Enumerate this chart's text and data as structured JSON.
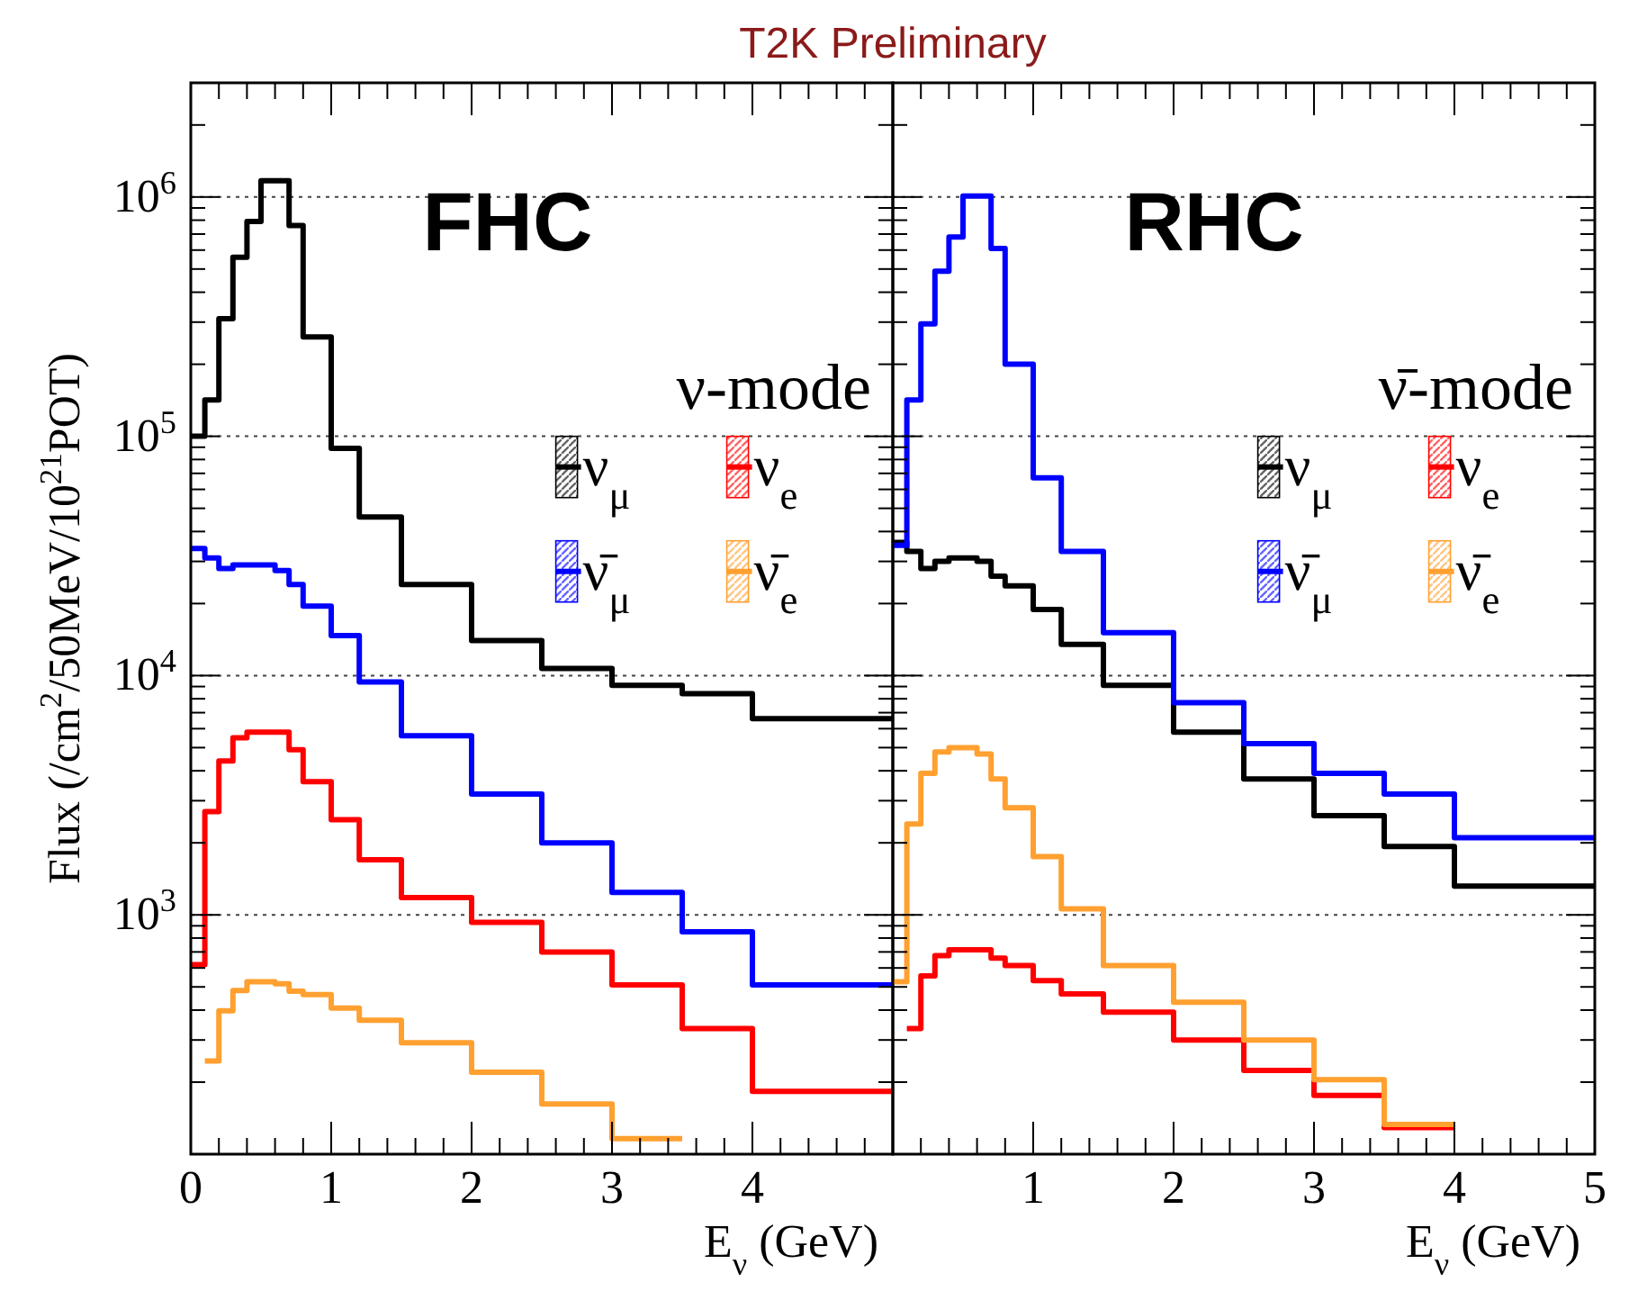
{
  "chart_data": [
    {
      "type": "histogram",
      "title": "FHC",
      "annotations": [
        "T2K Preliminary",
        "ν-mode"
      ],
      "xlabel": "E$_{ν}$ (GeV)",
      "ylabel": "Flux (/cm$^{2}$/50MeV/10$^{21}$POT)",
      "log": "y",
      "grid": "y",
      "legend": "right",
      "bins": [
        0,
        0.1,
        0.2,
        0.3,
        0.4,
        0.5,
        0.6,
        0.7,
        0.8,
        1.0,
        1.2,
        1.5,
        2.0,
        2.5,
        3.0,
        3.5,
        4.0,
        5.0
      ],
      "xlim": [
        0,
        5
      ],
      "ylim": [
        100,
        3000000
      ],
      "xticks": [
        0,
        {
          "value": 0.2,
          "label": null
        },
        {
          "value": 0.4,
          "label": null
        },
        {
          "value": 0.6,
          "label": null
        },
        {
          "value": 0.8,
          "label": null
        },
        1,
        {
          "value": 1.2,
          "label": null
        },
        {
          "value": 1.4,
          "label": null
        },
        {
          "value": 1.6,
          "label": null
        },
        {
          "value": 1.8,
          "label": null
        },
        2,
        {
          "value": 2.2,
          "label": null
        },
        {
          "value": 2.4,
          "label": null
        },
        {
          "value": 2.6,
          "label": null
        },
        {
          "value": 2.8,
          "label": null
        },
        3,
        {
          "value": 3.2,
          "label": null
        },
        {
          "value": 3.4,
          "label": null
        },
        {
          "value": 3.6,
          "label": null
        },
        {
          "value": 3.8,
          "label": null
        },
        4,
        {
          "value": 4.2,
          "label": null
        },
        {
          "value": 4.4,
          "label": null
        },
        {
          "value": 4.6,
          "label": null
        },
        {
          "value": 4.8,
          "label": null
        },
        {
          "value": 5,
          "label": null
        }
      ],
      "yticks": [
        {
          "value": 200,
          "label": null
        },
        {
          "value": 300,
          "label": null
        },
        {
          "value": 400,
          "label": null
        },
        {
          "value": 500,
          "label": null
        },
        {
          "value": 600,
          "label": null
        },
        {
          "value": 700,
          "label": null
        },
        {
          "value": 800,
          "label": null
        },
        {
          "value": 900,
          "label": null
        },
        {
          "value": 1000,
          "label": "10$^{3}$"
        },
        {
          "value": 2000,
          "label": null
        },
        {
          "value": 3000,
          "label": null
        },
        {
          "value": 4000,
          "label": null
        },
        {
          "value": 5000,
          "label": null
        },
        {
          "value": 6000,
          "label": null
        },
        {
          "value": 7000,
          "label": null
        },
        {
          "value": 8000,
          "label": null
        },
        {
          "value": 9000,
          "label": null
        },
        {
          "value": 10000,
          "label": "10$^{4}$"
        },
        {
          "value": 20000,
          "label": null
        },
        {
          "value": 30000,
          "label": null
        },
        {
          "value": 40000,
          "label": null
        },
        {
          "value": 50000,
          "label": null
        },
        {
          "value": 60000,
          "label": null
        },
        {
          "value": 70000,
          "label": null
        },
        {
          "value": 80000,
          "label": null
        },
        {
          "value": 90000,
          "label": null
        },
        {
          "value": 100000,
          "label": "10$^{5}$"
        },
        {
          "value": 200000,
          "label": null
        },
        {
          "value": 300000,
          "label": null
        },
        {
          "value": 400000,
          "label": null
        },
        {
          "value": 500000,
          "label": null
        },
        {
          "value": 600000,
          "label": null
        },
        {
          "value": 700000,
          "label": null
        },
        {
          "value": 800000,
          "label": null
        },
        {
          "value": 900000,
          "label": null
        },
        {
          "value": 1000000,
          "label": "10$^{6}$"
        },
        {
          "value": 2000000,
          "label": null
        }
      ],
      "series": [
        {
          "name": "ν$_{μ}$",
          "color": "#000000",
          "values": [
            100000,
            142000,
            310000,
            560000,
            790000,
            1170000,
            1170000,
            760000,
            260000,
            89000,
            46000,
            24000,
            14000,
            10700,
            9100,
            8400,
            6600
          ]
        },
        {
          "name": "ν̄$_{μ}$",
          "color": "#0000ff",
          "values": [
            34000,
            31000,
            28000,
            29000,
            29000,
            29000,
            27500,
            24000,
            19500,
            14700,
            9400,
            5600,
            3200,
            2000,
            1240,
            850,
            510
          ]
        },
        {
          "name": "ν$_{e}$",
          "color": "#ff0000",
          "values": [
            620,
            2700,
            4400,
            5500,
            5800,
            5800,
            5800,
            4900,
            3600,
            2500,
            1700,
            1180,
            930,
            700,
            510,
            335,
            183
          ]
        },
        {
          "name": "ν̄$_{e}$",
          "color": "#ffa030",
          "bins": [
            0.1,
            0.2,
            0.3,
            0.4,
            0.5,
            0.6,
            0.7,
            0.8,
            1.0,
            1.2,
            1.5,
            2.0,
            2.5,
            3.0,
            3.5
          ],
          "values": [
            245,
            397,
            483,
            525,
            525,
            515,
            480,
            464,
            408,
            363,
            292,
            220,
            162,
            116
          ]
        }
      ]
    },
    {
      "type": "histogram",
      "title": "RHC",
      "annotations": [
        "ν̄-mode"
      ],
      "xlabel": "E$_{ν}$ (GeV)",
      "log": "y",
      "grid": "y",
      "legend": "right",
      "tick_labels": "x",
      "bins": [
        0,
        0.1,
        0.2,
        0.3,
        0.4,
        0.5,
        0.6,
        0.7,
        0.8,
        1.0,
        1.2,
        1.5,
        2.0,
        2.5,
        3.0,
        3.5,
        4.0,
        5.0
      ],
      "xlim": [
        0,
        5
      ],
      "ylim": [
        100,
        3000000
      ],
      "xticks": [
        {
          "value": 0,
          "label": null
        },
        {
          "value": 0.2,
          "label": null
        },
        {
          "value": 0.4,
          "label": null
        },
        {
          "value": 0.6,
          "label": null
        },
        {
          "value": 0.8,
          "label": null
        },
        1,
        {
          "value": 1.2,
          "label": null
        },
        {
          "value": 1.4,
          "label": null
        },
        {
          "value": 1.6,
          "label": null
        },
        {
          "value": 1.8,
          "label": null
        },
        2,
        {
          "value": 2.2,
          "label": null
        },
        {
          "value": 2.4,
          "label": null
        },
        {
          "value": 2.6,
          "label": null
        },
        {
          "value": 2.8,
          "label": null
        },
        3,
        {
          "value": 3.2,
          "label": null
        },
        {
          "value": 3.4,
          "label": null
        },
        {
          "value": 3.6,
          "label": null
        },
        {
          "value": 3.8,
          "label": null
        },
        4,
        {
          "value": 4.2,
          "label": null
        },
        {
          "value": 4.4,
          "label": null
        },
        {
          "value": 4.6,
          "label": null
        },
        {
          "value": 4.8,
          "label": null
        },
        5
      ],
      "yticks": [
        {
          "value": 200,
          "label": null
        },
        {
          "value": 300,
          "label": null
        },
        {
          "value": 400,
          "label": null
        },
        {
          "value": 500,
          "label": null
        },
        {
          "value": 600,
          "label": null
        },
        {
          "value": 700,
          "label": null
        },
        {
          "value": 800,
          "label": null
        },
        {
          "value": 900,
          "label": null
        },
        {
          "value": 1000,
          "label": null
        },
        {
          "value": 2000,
          "label": null
        },
        {
          "value": 3000,
          "label": null
        },
        {
          "value": 4000,
          "label": null
        },
        {
          "value": 5000,
          "label": null
        },
        {
          "value": 6000,
          "label": null
        },
        {
          "value": 7000,
          "label": null
        },
        {
          "value": 8000,
          "label": null
        },
        {
          "value": 9000,
          "label": null
        },
        {
          "value": 10000,
          "label": null
        },
        {
          "value": 20000,
          "label": null
        },
        {
          "value": 30000,
          "label": null
        },
        {
          "value": 40000,
          "label": null
        },
        {
          "value": 50000,
          "label": null
        },
        {
          "value": 60000,
          "label": null
        },
        {
          "value": 70000,
          "label": null
        },
        {
          "value": 80000,
          "label": null
        },
        {
          "value": 90000,
          "label": null
        },
        {
          "value": 100000,
          "label": null
        },
        {
          "value": 200000,
          "label": null
        },
        {
          "value": 300000,
          "label": null
        },
        {
          "value": 400000,
          "label": null
        },
        {
          "value": 500000,
          "label": null
        },
        {
          "value": 600000,
          "label": null
        },
        {
          "value": 700000,
          "label": null
        },
        {
          "value": 800000,
          "label": null
        },
        {
          "value": 900000,
          "label": null
        },
        {
          "value": 1000000,
          "label": null
        },
        {
          "value": 2000000,
          "label": null
        }
      ],
      "series": [
        {
          "name": "ν$_{μ}$",
          "color": "#000000",
          "values": [
            36000,
            33000,
            28000,
            30000,
            31000,
            31000,
            30000,
            26000,
            23700,
            18900,
            13500,
            9100,
            5800,
            3700,
            2600,
            1930,
            1320
          ]
        },
        {
          "name": "ν̄$_{μ}$",
          "color": "#0000ff",
          "values": [
            35000,
            142000,
            295000,
            490000,
            680000,
            1010000,
            1010000,
            610000,
            200000,
            67000,
            33000,
            15100,
            7700,
            5200,
            3900,
            3200,
            2100
          ]
        },
        {
          "name": "ν$_{e}$",
          "color": "#ff0000",
          "bins": [
            0.1,
            0.2,
            0.3,
            0.4,
            0.5,
            0.6,
            0.7,
            0.8,
            1.0,
            1.2,
            1.5,
            2.0,
            2.5,
            3.0,
            3.5,
            4.0
          ],
          "values": [
            335,
            556,
            675,
            714,
            714,
            714,
            660,
            614,
            531,
            467,
            392,
            300,
            224,
            176,
            129
          ]
        },
        {
          "name": "ν̄$_{e}$",
          "color": "#ffa030",
          "bins": [
            0,
            0.1,
            0.2,
            0.3,
            0.4,
            0.5,
            0.6,
            0.7,
            0.8,
            1.0,
            1.2,
            1.5,
            2.0,
            2.5,
            3.0,
            3.5,
            4.0
          ],
          "values": [
            525,
            2400,
            3900,
            4800,
            5000,
            5000,
            4700,
            3700,
            2800,
            1750,
            1060,
            614,
            431,
            300,
            205,
            133
          ]
        }
      ]
    }
  ]
}
